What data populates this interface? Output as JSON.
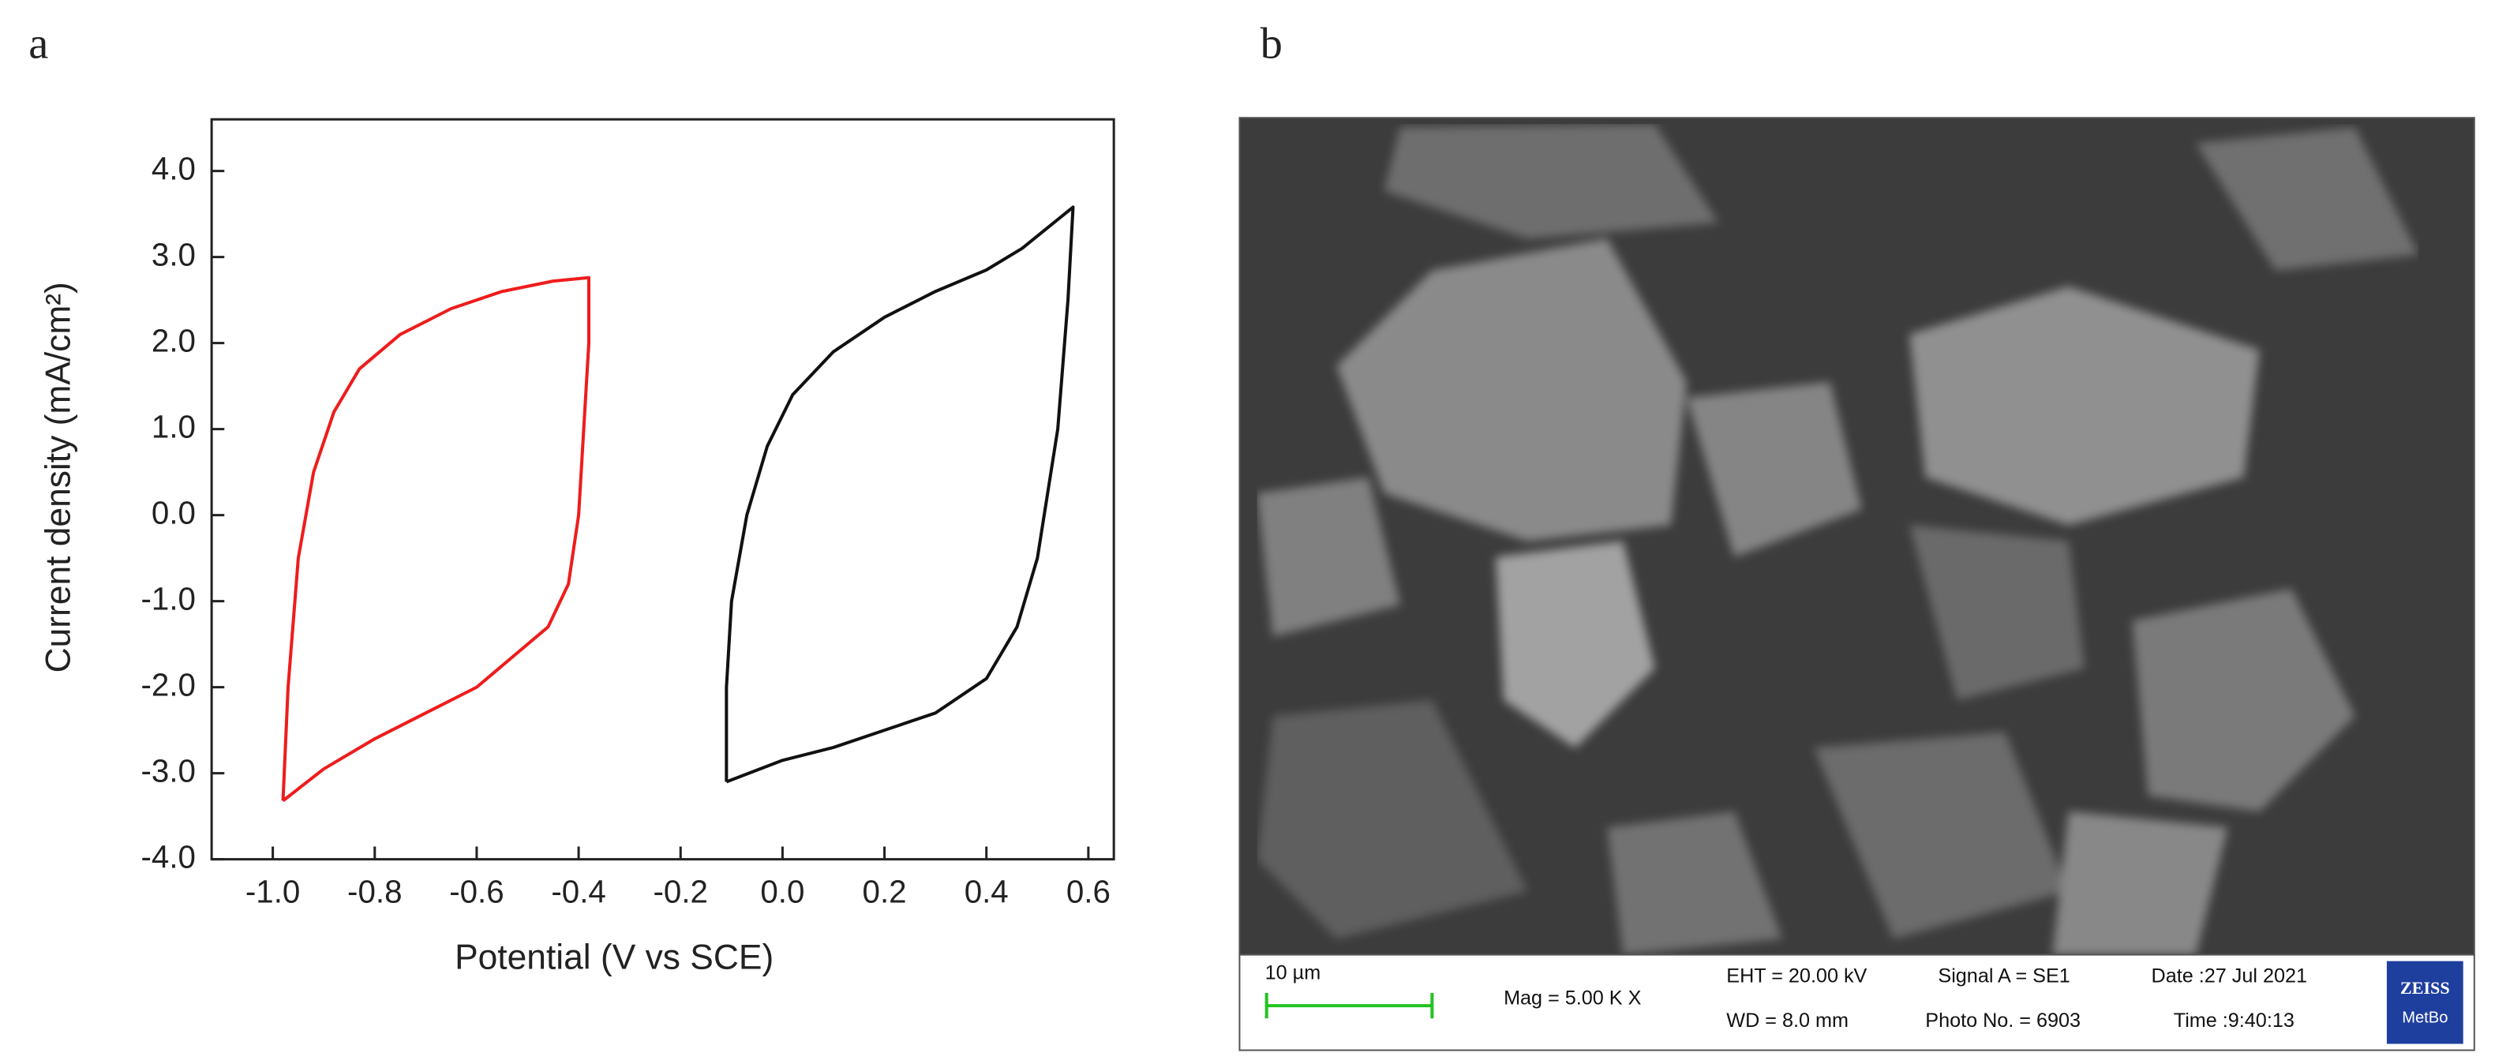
{
  "chart_data": {
    "type": "line",
    "panel_label": "a",
    "xlabel": "Potential (V vs SCE)",
    "ylabel": "Current density (mA/cm²)",
    "xlim": [
      -1.12,
      0.65
    ],
    "ylim": [
      -4,
      4.6
    ],
    "xticks": [
      {
        "value": -1,
        "label": "-1.0"
      },
      -0.8,
      -0.6,
      -0.4,
      -0.2,
      {
        "value": 0,
        "label": "0.0"
      },
      0.2,
      0.4,
      0.6
    ],
    "yticks": [
      {
        "value": 4,
        "label": "4.0"
      },
      {
        "value": 3,
        "label": "3.0"
      },
      {
        "value": 2,
        "label": "2.0"
      },
      {
        "value": 1,
        "label": "1.0"
      },
      {
        "value": 0,
        "label": "0.0"
      },
      {
        "value": -1,
        "label": "-1.0"
      },
      {
        "value": -2,
        "label": "-2.0"
      },
      {
        "value": -3,
        "label": "-3.0"
      },
      {
        "value": -4,
        "label": "-4.0"
      }
    ],
    "series": [
      {
        "color": "#ee1c1c",
        "x": [
          -0.98,
          -0.97,
          -0.95,
          -0.92,
          -0.88,
          -0.83,
          -0.75,
          -0.65,
          -0.55,
          -0.45,
          -0.38,
          -0.38,
          -0.39,
          -0.4,
          -0.42,
          -0.46,
          -0.52,
          -0.6,
          -0.7,
          -0.8,
          -0.9,
          -0.98
        ],
        "values": [
          -3.32,
          -2.0,
          -0.5,
          0.5,
          1.2,
          1.7,
          2.1,
          2.4,
          2.6,
          2.72,
          2.76,
          2.0,
          1.0,
          0.0,
          -0.8,
          -1.3,
          -1.6,
          -2.0,
          -2.3,
          -2.6,
          -2.95,
          -3.32
        ]
      },
      {
        "color": "#111111",
        "x": [
          -0.11,
          -0.11,
          -0.1,
          -0.07,
          -0.03,
          0.02,
          0.1,
          0.2,
          0.3,
          0.4,
          0.47,
          0.57,
          0.56,
          0.54,
          0.5,
          0.46,
          0.4,
          0.3,
          0.2,
          0.1,
          0.0,
          -0.11
        ],
        "values": [
          -3.1,
          -2.0,
          -1.0,
          0.0,
          0.8,
          1.4,
          1.9,
          2.3,
          2.6,
          2.85,
          3.1,
          3.58,
          2.5,
          1.0,
          -0.5,
          -1.3,
          -1.9,
          -2.3,
          -2.5,
          -2.7,
          -2.85,
          -3.1
        ]
      }
    ]
  },
  "image_panel": {
    "panel_label": "b",
    "scale_bar": "10 µm",
    "info": [
      "Mag =  5.00 K X",
      "EHT = 20.00 kV",
      "WD =  8.0 mm",
      "Signal A = SE1",
      "Photo No. = 6903",
      "Date :27 Jul 2021",
      "Time :9:40:13"
    ],
    "logo": [
      "ZEISS",
      "MetBo"
    ]
  }
}
